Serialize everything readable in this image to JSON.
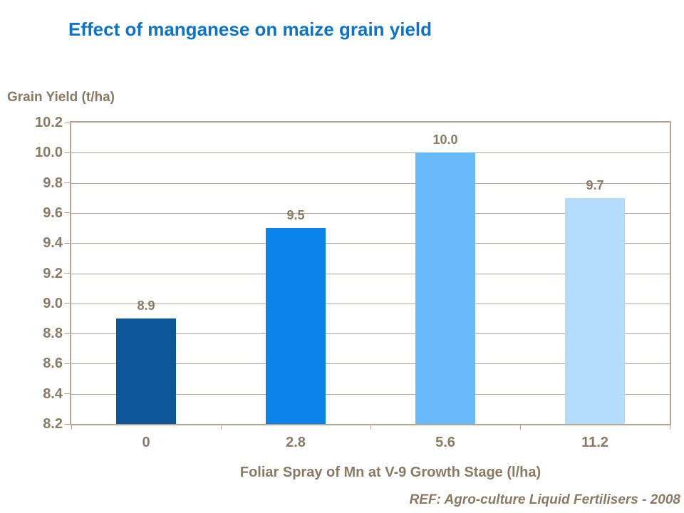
{
  "slide_title": "Effect of manganese on maize grain yield",
  "reference": "REF: Agro-culture Liquid Fertilisers - 2008",
  "colors": {
    "title_text": "#0d73c8",
    "axis_text": "#8a7a64",
    "grid_line": "#b4a694"
  },
  "chart_data": {
    "type": "bar",
    "title": "Effect of manganese on maize grain yield",
    "categories": [
      "0",
      "2.8",
      "5.6",
      "11.2"
    ],
    "values": [
      8.9,
      9.5,
      10.0,
      9.7
    ],
    "data_labels": [
      "8.9",
      "9.5",
      "10.0",
      "9.7"
    ],
    "bar_colors": [
      "#0a5696",
      "#0a84e8",
      "#68baf9",
      "#b6dcfb"
    ],
    "xlabel": "Foliar Spray of Mn at V-9 Growth Stage (l/ha)",
    "ylabel": "Grain Yield (t/ha)",
    "ylim": [
      8.2,
      10.2
    ],
    "ytick_step": 0.2,
    "ytick_labels": [
      "8.2",
      "8.4",
      "8.6",
      "8.8",
      "9.0",
      "9.2",
      "9.4",
      "9.6",
      "9.8",
      "10.0",
      "10.2"
    ],
    "grid": true,
    "legend": false
  }
}
